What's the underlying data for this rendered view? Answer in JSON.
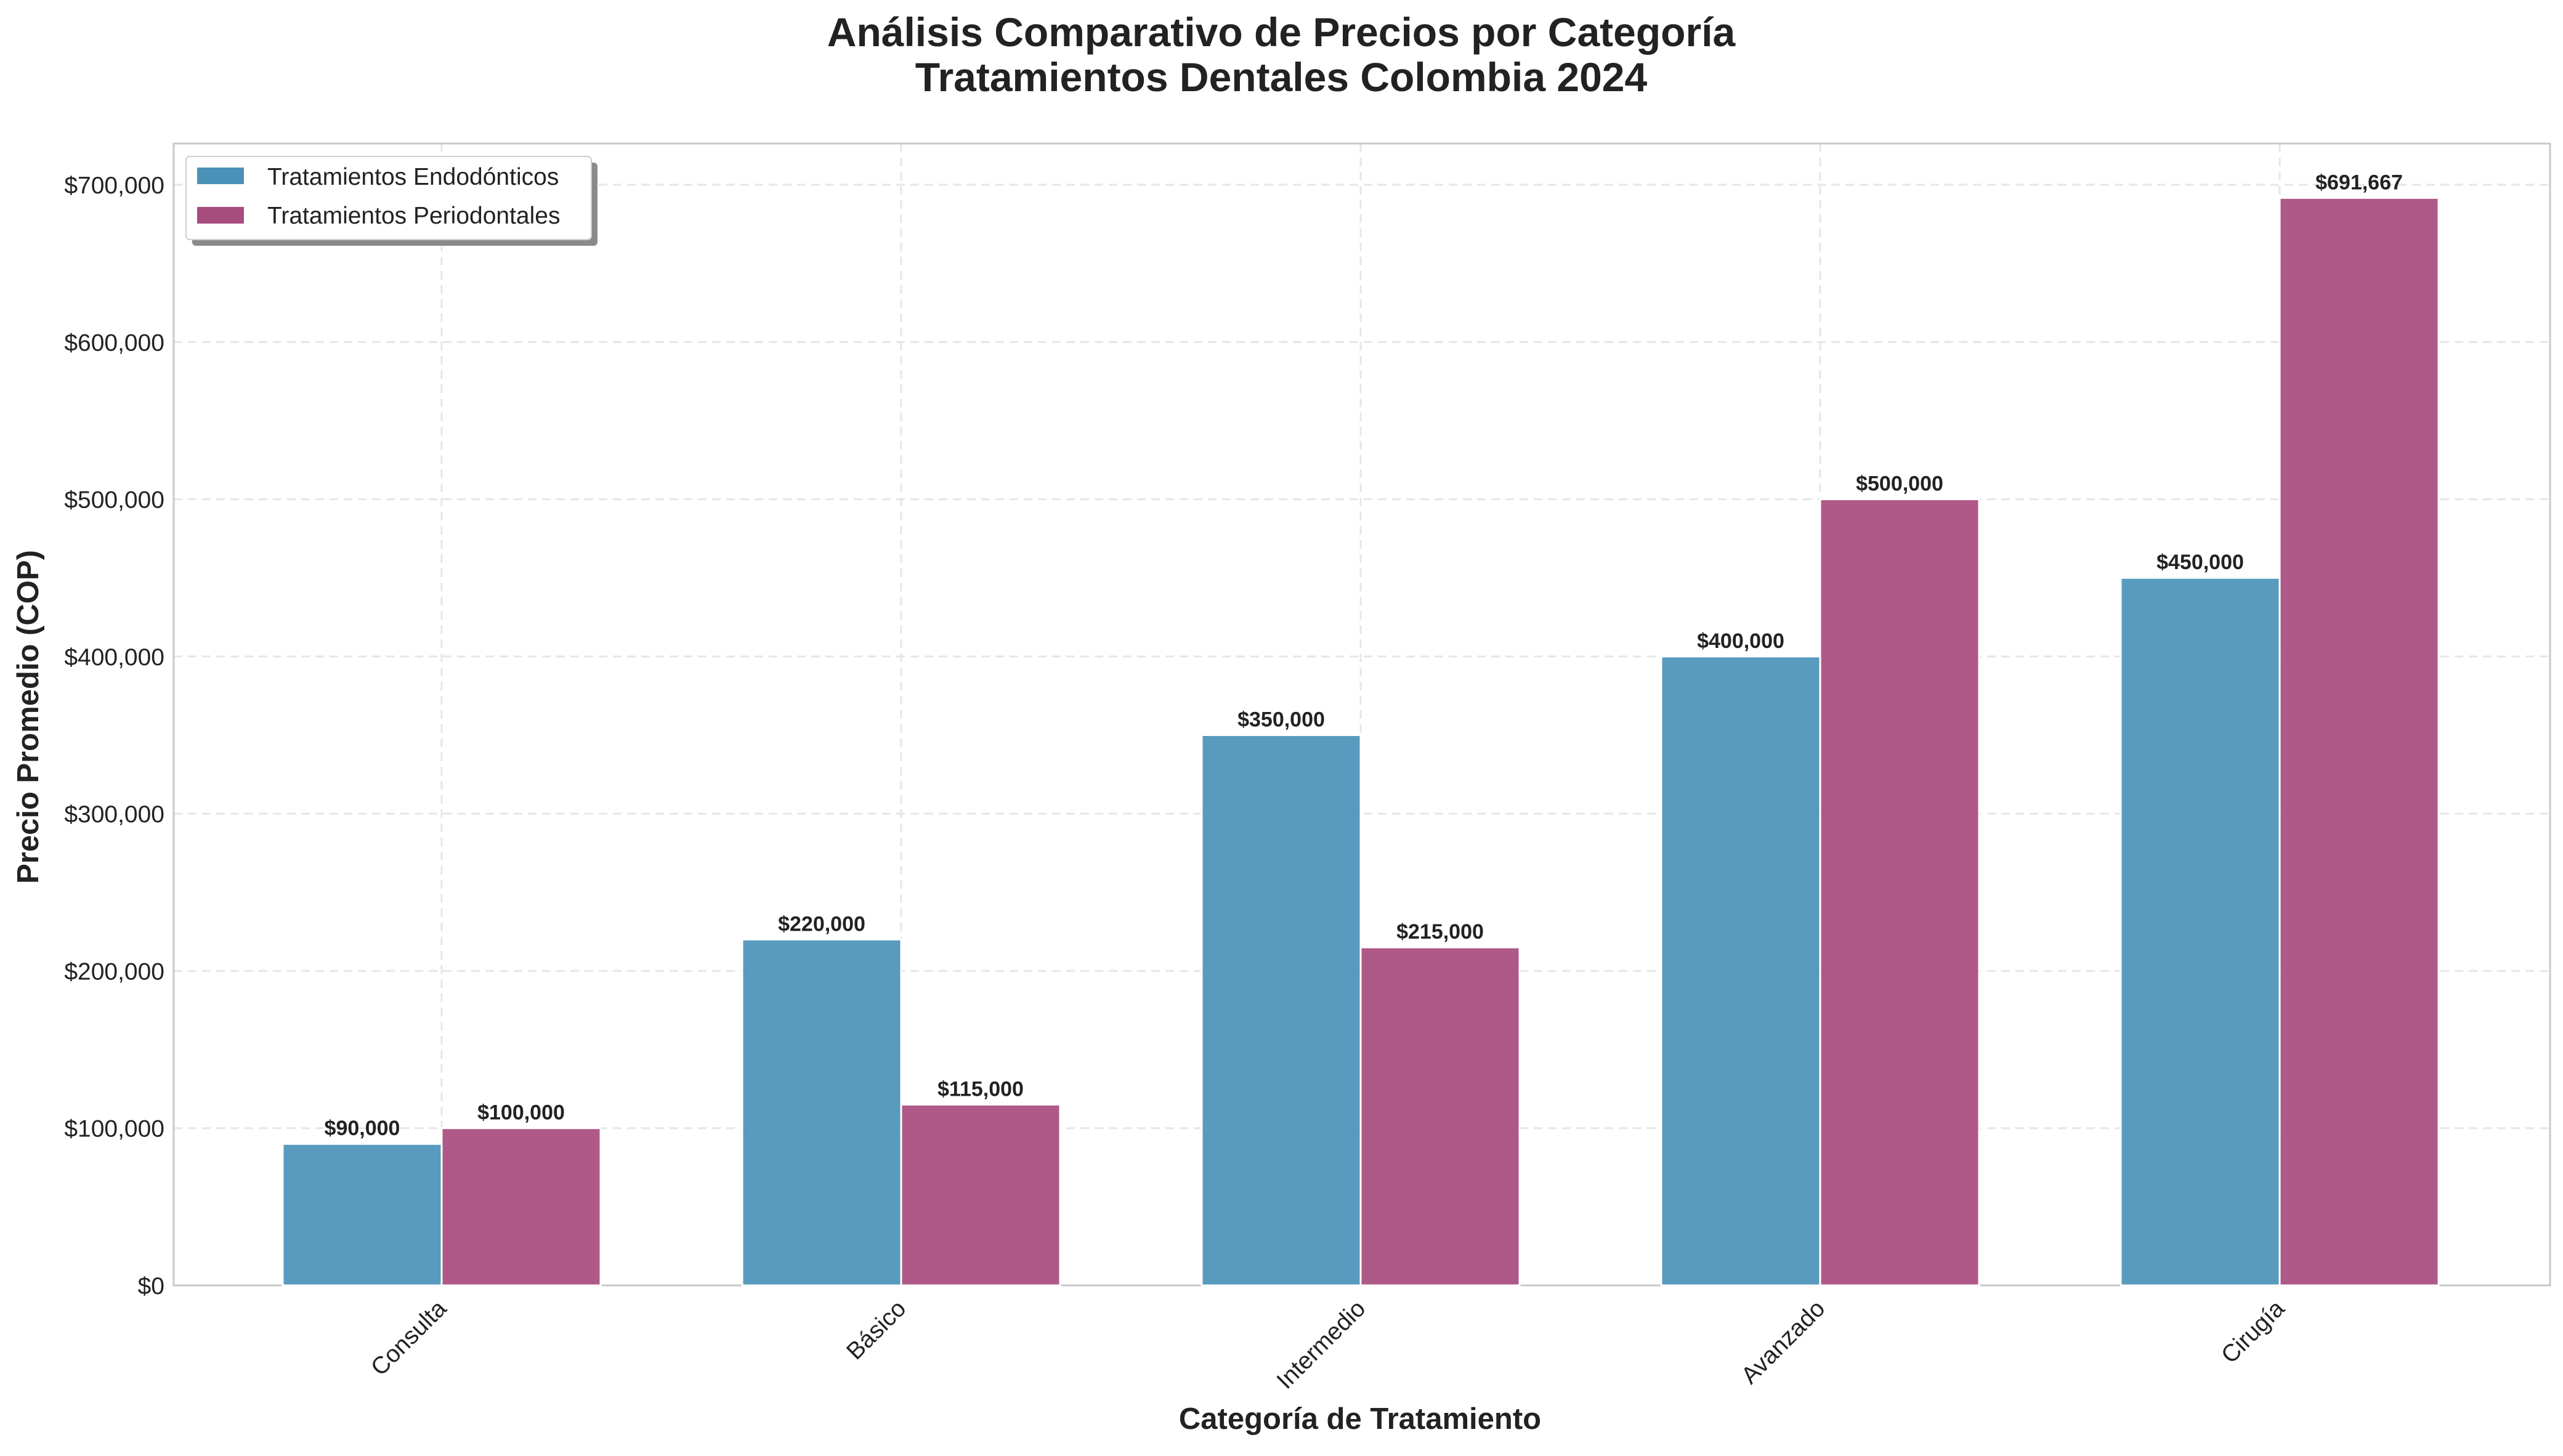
{
  "chart_data": {
    "type": "bar",
    "title_line1": "Análisis Comparativo de Precios por Categoría",
    "title_line2": "Tratamientos Dentales Colombia 2024",
    "xlabel": "Categoría de Tratamiento",
    "ylabel": "Precio Promedio (COP)",
    "categories": [
      "Consulta",
      "Básico",
      "Intermedio",
      "Avanzado",
      "Cirugía"
    ],
    "series": [
      {
        "name": "Tratamientos Endodónticos",
        "color": "#4a92b8",
        "values": [
          90000,
          220000,
          350000,
          400000,
          450000
        ],
        "labels": [
          "$90,000",
          "$220,000",
          "$350,000",
          "$400,000",
          "$450,000"
        ]
      },
      {
        "name": "Tratamientos Periodontales",
        "color": "#a84b7e",
        "values": [
          100000,
          115000,
          215000,
          500000,
          691667
        ],
        "labels": [
          "$100,000",
          "$115,000",
          "$215,000",
          "$500,000",
          "$691,667"
        ]
      }
    ],
    "yticks": [
      0,
      100000,
      200000,
      300000,
      400000,
      500000,
      600000,
      700000
    ],
    "ytick_labels": [
      "$0",
      "$100,000",
      "$200,000",
      "$300,000",
      "$400,000",
      "$500,000",
      "$600,000",
      "$700,000"
    ],
    "ylim": [
      0,
      726250
    ],
    "grid": true,
    "legend_position": "top-left"
  }
}
